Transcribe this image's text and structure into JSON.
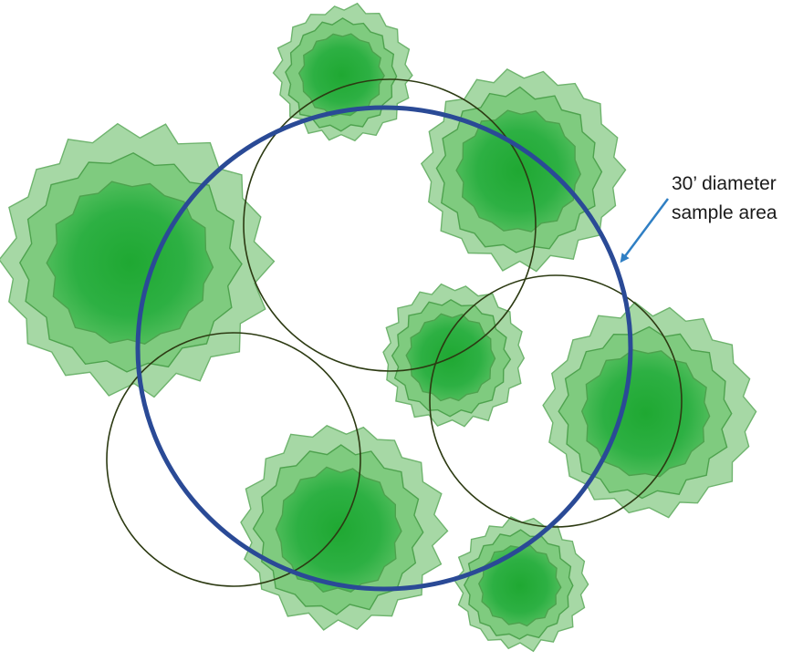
{
  "annotation": {
    "line1": "30’ diameter",
    "line2": "sample area"
  },
  "colors": {
    "canopy_light": "#a6d8a5",
    "canopy_light_stroke": "#6fb46e",
    "canopy_mid": "#7fcb7f",
    "canopy_mid_stroke": "#4ea24e",
    "canopy_core": "#25ab3a",
    "sample_circle": "#2a4a96",
    "subplot_circle": "#2c3a12",
    "arrow": "#2f7fc4"
  },
  "icons": [
    "tree-canopy",
    "sample-area-circle",
    "subplot-circle",
    "arrow"
  ]
}
